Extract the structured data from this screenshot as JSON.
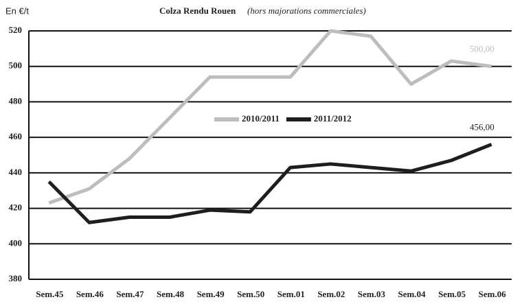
{
  "chart_data": {
    "type": "line",
    "title": "Colza Rendu Rouen",
    "subtitle": "(hors majorations commerciales)",
    "y_label": "En €/t",
    "categories": [
      "Sem.45",
      "Sem.46",
      "Sem.47",
      "Sem.48",
      "Sem.49",
      "Sem.50",
      "Sem.01",
      "Sem.02",
      "Sem.03",
      "Sem.04",
      "Sem.05",
      "Sem.06"
    ],
    "series": [
      {
        "name": "2010/2011",
        "color": "#bdbdbd",
        "values": [
          423,
          431,
          448,
          471,
          494,
          494,
          494,
          520,
          517,
          490,
          503,
          500
        ],
        "value_labels": [
          null,
          null,
          null,
          null,
          null,
          null,
          null,
          null,
          null,
          null,
          null,
          "500,00"
        ]
      },
      {
        "name": "2011/2012",
        "color": "#1e1e1e",
        "values": [
          435,
          412,
          415,
          415,
          419,
          418,
          443,
          445,
          443,
          441,
          447,
          456
        ],
        "value_labels": [
          null,
          null,
          null,
          null,
          null,
          null,
          null,
          null,
          null,
          null,
          null,
          "456,00"
        ]
      }
    ],
    "ylim": [
      380,
      520
    ],
    "yticks": [
      380,
      400,
      420,
      440,
      460,
      480,
      500,
      520
    ],
    "grid": true
  }
}
